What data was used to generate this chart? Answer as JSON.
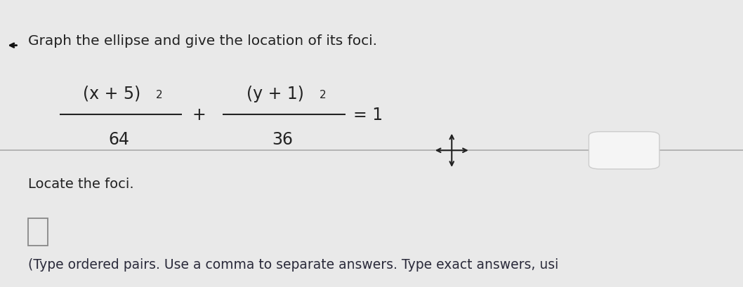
{
  "background_color": "#e9e9e9",
  "title_text": "Graph the ellipse and give the location of its foci.",
  "title_fontsize": 14.5,
  "title_color": "#222222",
  "eq_num1": "(x + 5)",
  "eq_num1_exp": "2",
  "eq_den1": "64",
  "eq_plus": "+",
  "eq_num2": "(y + 1)",
  "eq_num2_exp": "2",
  "eq_den2": "36",
  "eq_equals": "= 1",
  "eq_fontsize": 17.0,
  "eq_exp_fontsize": 11.0,
  "eq_color": "#222222",
  "locate_text": "Locate the foci.",
  "locate_fontsize": 14.0,
  "locate_color": "#222222",
  "instruction_text": "(Type ordered pairs. Use a comma to separate answers. Type exact answers, usi",
  "instruction_fontsize": 13.5,
  "instruction_color": "#2a2a3a",
  "divider_color": "#b0b0b0",
  "divider_linewidth": 1.3,
  "arrow_color": "#222222",
  "dots_button_color": "#f5f5f5",
  "dots_border_color": "#cccccc",
  "dots_text_color": "#555555",
  "answer_box_color": "#888888",
  "left_arrow_color": "#111111"
}
